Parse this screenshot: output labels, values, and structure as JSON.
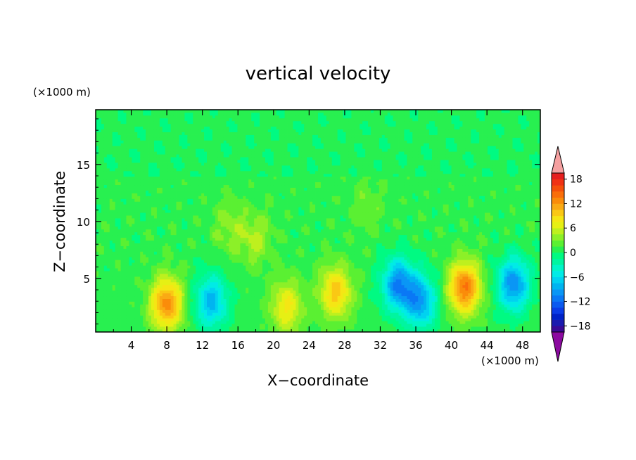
{
  "chart_data": {
    "type": "heatmap",
    "title": "vertical velocity",
    "xlabel": "X−coordinate",
    "ylabel": "Z−coordinate",
    "x_unit": "(×1000 m)",
    "y_unit": "(×1000 m)",
    "xlim": [
      0,
      50
    ],
    "ylim": [
      0.3,
      19.8
    ],
    "x_ticks": [
      4,
      8,
      12,
      16,
      20,
      24,
      28,
      32,
      36,
      40,
      44,
      48
    ],
    "y_ticks": [
      5,
      10,
      15
    ],
    "colorbar": {
      "levels": [
        -21,
        -19.5,
        -18,
        -16.5,
        -15,
        -13.5,
        -12,
        -10.5,
        -9,
        -7.5,
        -6,
        -4.5,
        -3,
        -1.5,
        0,
        1.5,
        3,
        4.5,
        6,
        7.5,
        9,
        10.5,
        12,
        13.5,
        15,
        16.5,
        18,
        19.5,
        21
      ],
      "tick_labels": [
        "18",
        "12",
        "6",
        "0",
        "−6",
        "−12",
        "−18"
      ],
      "tick_values": [
        18,
        12,
        6,
        0,
        -6,
        -12,
        -18
      ],
      "colors": [
        "#8c0aa0",
        "#3a0a96",
        "#1b1baf",
        "#0022c8",
        "#0a3ce6",
        "#0a5af0",
        "#0a78f5",
        "#0a96f5",
        "#00b4f0",
        "#00d2f0",
        "#00ebe6",
        "#00f5c8",
        "#00f5a0",
        "#00fa82",
        "#28f050",
        "#5af032",
        "#8cf028",
        "#bef01e",
        "#e6f014",
        "#f5e614",
        "#fac814",
        "#faaa14",
        "#fa8c0a",
        "#fa6e0a",
        "#f5500a",
        "#f03214",
        "#e61e1e",
        "#f5a0a0"
      ],
      "extend": "both"
    },
    "features": [
      {
        "x": 8,
        "z": 2.8,
        "peak": 12
      },
      {
        "x": 13,
        "z": 3,
        "peak": -9
      },
      {
        "x": 21.5,
        "z": 2.5,
        "peak": 7
      },
      {
        "x": 27,
        "z": 3.8,
        "peak": 9
      },
      {
        "x": 34,
        "z": 4.5,
        "peak": -11
      },
      {
        "x": 36.5,
        "z": 3,
        "peak": -10
      },
      {
        "x": 41.5,
        "z": 4.2,
        "peak": 13
      },
      {
        "x": 47,
        "z": 4.5,
        "peak": -11
      },
      {
        "x": 18,
        "z": 8.5,
        "peak": 4
      },
      {
        "x": 15,
        "z": 9.5,
        "peak": 3
      },
      {
        "x": 30.5,
        "z": 11.5,
        "peak": 2
      }
    ]
  }
}
